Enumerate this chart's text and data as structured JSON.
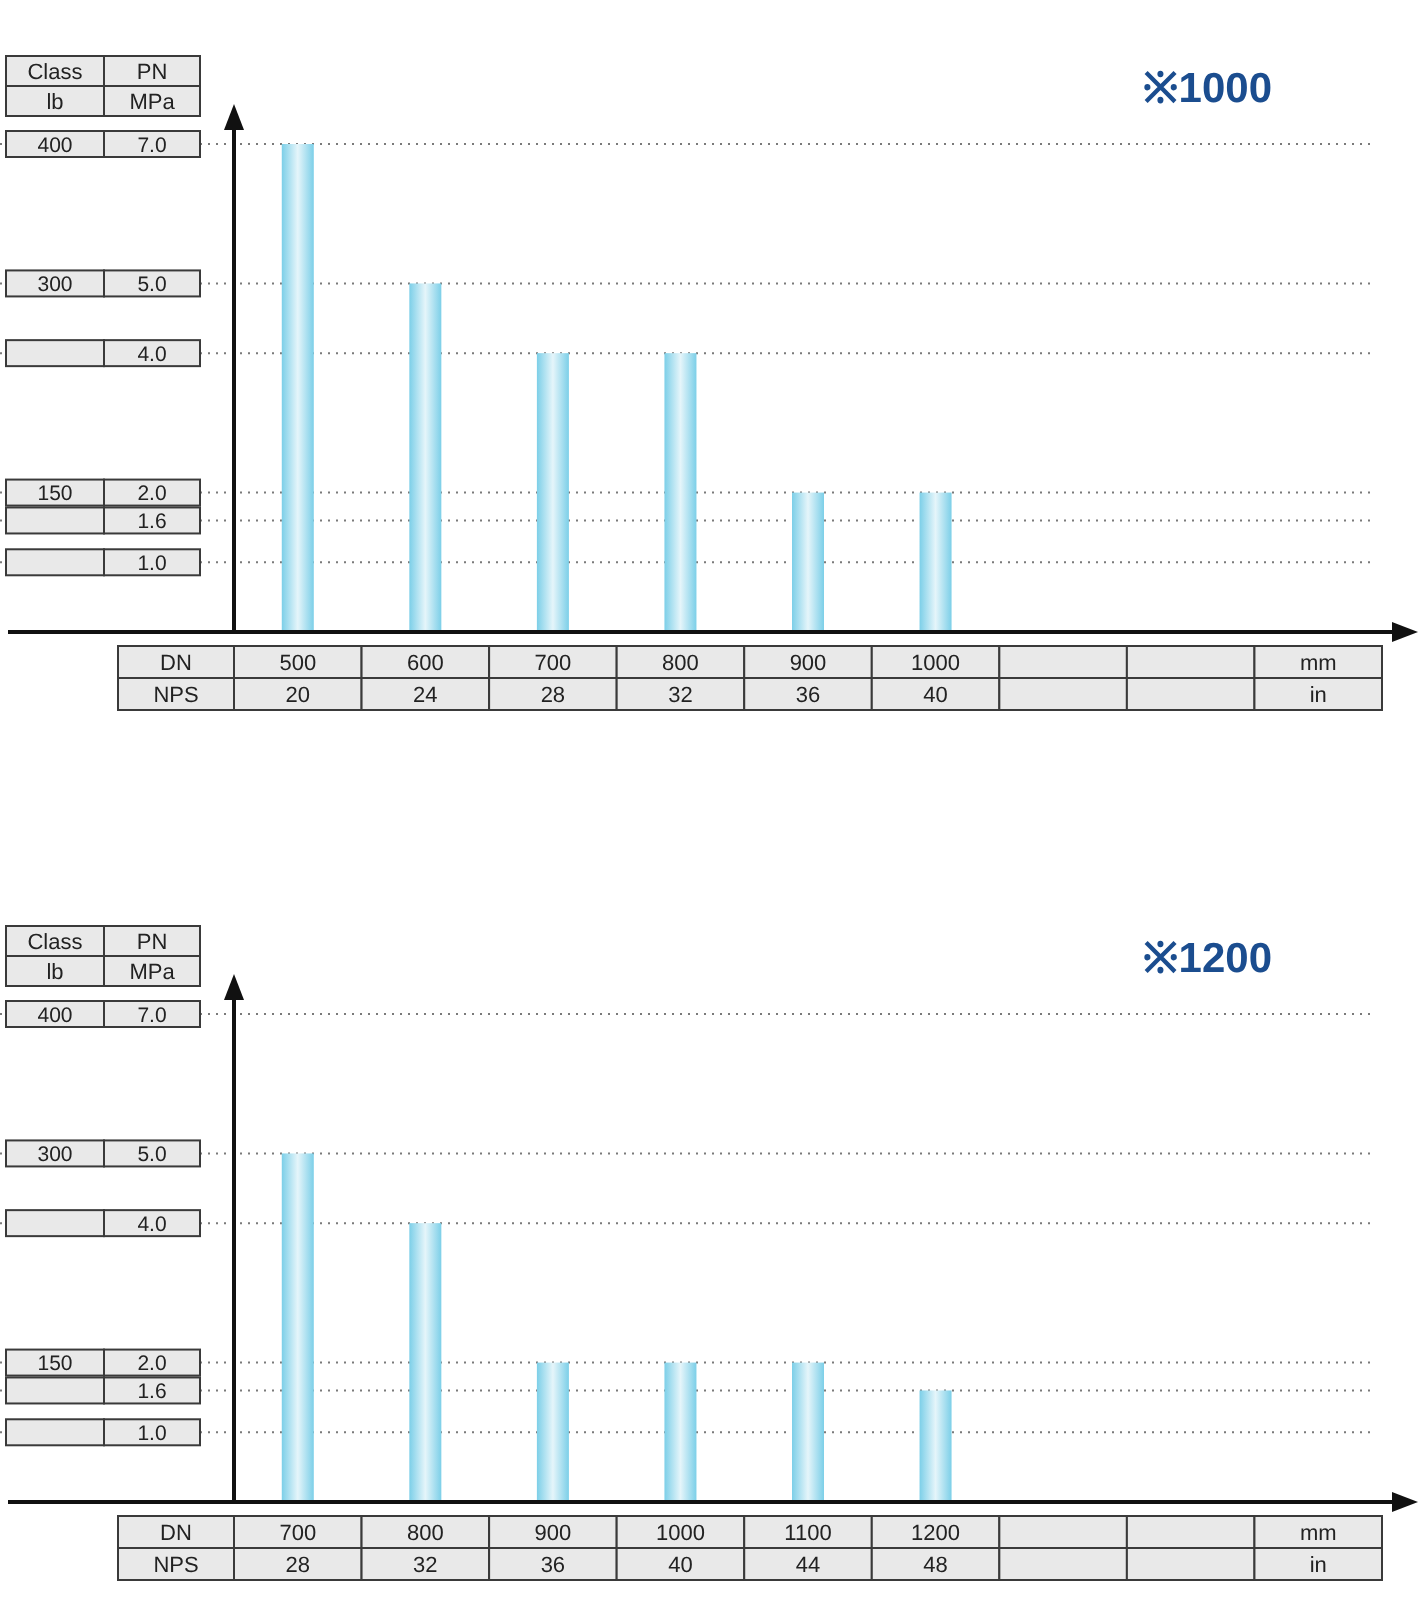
{
  "chart_data": [
    {
      "type": "bar",
      "title": "※1000",
      "xlabel": "DN",
      "x2label": "NPS",
      "ylabel": "PN",
      "y2label": "Class",
      "x": [
        500,
        600,
        700,
        800,
        900,
        1000
      ],
      "values": [
        7,
        5,
        4,
        4,
        2,
        2
      ],
      "color": "#7ccfe8",
      "xlim": [
        450,
        1350
      ],
      "xticks": [
        500,
        600,
        700,
        800,
        900,
        1000
      ],
      "x2lim": [
        18,
        54
      ],
      "x2ticks": [
        20,
        24,
        28,
        32,
        36,
        40
      ],
      "ylim": [
        0,
        7
      ],
      "yticks": [
        {
          "value": 1,
          "label": "1.0"
        },
        1.6,
        {
          "value": 2,
          "label": "2.0"
        },
        {
          "value": 4,
          "label": "4.0"
        },
        {
          "value": 5,
          "label": "5.0"
        },
        {
          "value": 7,
          "label": "7.0"
        }
      ],
      "y2lim": [
        50,
        400
      ],
      "y2ticks": [
        150,
        300,
        400
      ],
      "grid": "y",
      "annotations": [
        "lb",
        "MPa",
        "mm",
        "in"
      ]
    },
    {
      "type": "bar",
      "title": "※1200",
      "xlabel": "DN",
      "x2label": "NPS",
      "ylabel": "PN",
      "y2label": "Class",
      "x": [
        700,
        800,
        900,
        1000,
        1100,
        1200
      ],
      "values": [
        5,
        4,
        2,
        2,
        2,
        1.6
      ],
      "color": "#7ccfe8",
      "xlim": [
        650,
        1550
      ],
      "xticks": [
        700,
        800,
        900,
        1000,
        1100,
        1200
      ],
      "x2lim": [
        26,
        62
      ],
      "x2ticks": [
        28,
        32,
        36,
        40,
        44,
        48
      ],
      "ylim": [
        0,
        7
      ],
      "yticks": [
        {
          "value": 1,
          "label": "1.0"
        },
        1.6,
        {
          "value": 2,
          "label": "2.0"
        },
        {
          "value": 4,
          "label": "4.0"
        },
        {
          "value": 5,
          "label": "5.0"
        },
        {
          "value": 7,
          "label": "7.0"
        }
      ],
      "y2lim": [
        50,
        400
      ],
      "y2ticks": [
        150,
        300,
        400
      ],
      "grid": "y",
      "annotations": [
        "lb",
        "MPa",
        "mm",
        "in"
      ]
    }
  ]
}
